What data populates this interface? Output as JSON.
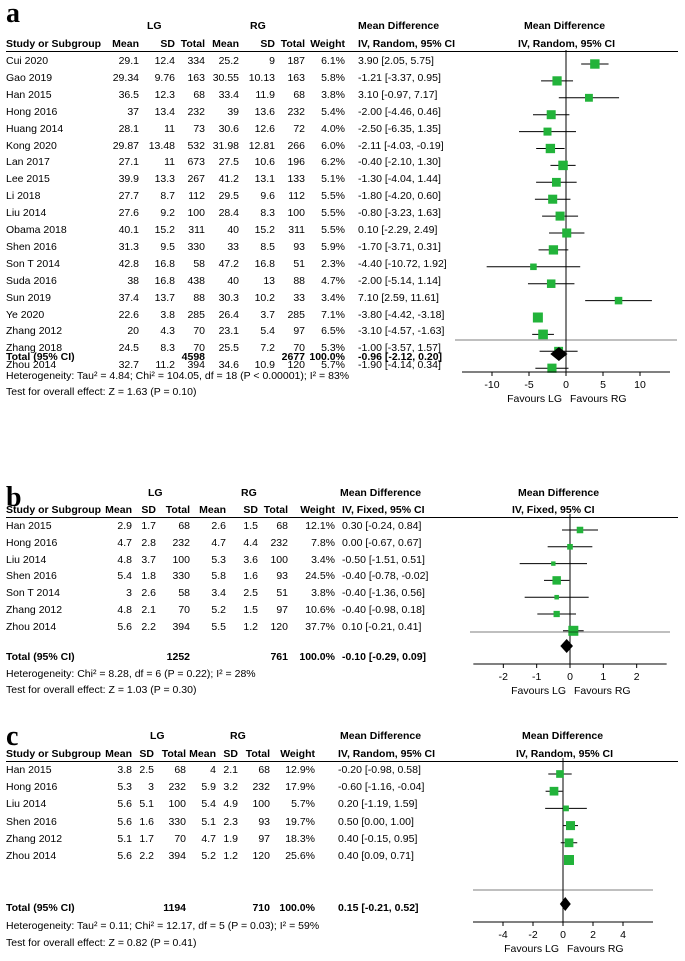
{
  "colors": {
    "marker": "#22b33a",
    "line": "#000000",
    "diamond": "#000000"
  },
  "panels": [
    {
      "id": "a",
      "label": "a",
      "groups": {
        "g1": "LG",
        "g2": "RG"
      },
      "headers": {
        "study": "Study or Subgroup",
        "mean": "Mean",
        "sd": "SD",
        "total": "Total",
        "weight": "Weight",
        "md_title": "Mean Difference",
        "md_method": "IV, Random, 95% CI",
        "plot_title": "Mean Difference",
        "plot_method": "IV, Random, 95% CI"
      },
      "rows": [
        [
          "Cui 2020",
          "29.1",
          "12.4",
          "334",
          "25.2",
          "9",
          "187",
          "6.1%",
          "3.90 [2.05, 5.75]"
        ],
        [
          "Gao 2019",
          "29.34",
          "9.76",
          "163",
          "30.55",
          "10.13",
          "163",
          "5.8%",
          "-1.21 [-3.37, 0.95]"
        ],
        [
          "Han 2015",
          "36.5",
          "12.3",
          "68",
          "33.4",
          "11.9",
          "68",
          "3.8%",
          "3.10 [-0.97, 7.17]"
        ],
        [
          "Hong 2016",
          "37",
          "13.4",
          "232",
          "39",
          "13.6",
          "232",
          "5.4%",
          "-2.00 [-4.46, 0.46]"
        ],
        [
          "Huang 2014",
          "28.1",
          "11",
          "73",
          "30.6",
          "12.6",
          "72",
          "4.0%",
          "-2.50 [-6.35, 1.35]"
        ],
        [
          "Kong 2020",
          "29.87",
          "13.48",
          "532",
          "31.98",
          "12.81",
          "266",
          "6.0%",
          "-2.11 [-4.03, -0.19]"
        ],
        [
          "Lan 2017",
          "27.1",
          "11",
          "673",
          "27.5",
          "10.6",
          "196",
          "6.2%",
          "-0.40 [-2.10, 1.30]"
        ],
        [
          "Lee 2015",
          "39.9",
          "13.3",
          "267",
          "41.2",
          "13.1",
          "133",
          "5.1%",
          "-1.30 [-4.04, 1.44]"
        ],
        [
          "Li 2018",
          "27.7",
          "8.7",
          "112",
          "29.5",
          "9.6",
          "112",
          "5.5%",
          "-1.80 [-4.20, 0.60]"
        ],
        [
          "Liu 2014",
          "27.6",
          "9.2",
          "100",
          "28.4",
          "8.3",
          "100",
          "5.5%",
          "-0.80 [-3.23, 1.63]"
        ],
        [
          "Obama 2018",
          "40.1",
          "15.2",
          "311",
          "40",
          "15.2",
          "311",
          "5.5%",
          "0.10 [-2.29, 2.49]"
        ],
        [
          "Shen 2016",
          "31.3",
          "9.5",
          "330",
          "33",
          "8.5",
          "93",
          "5.9%",
          "-1.70 [-3.71, 0.31]"
        ],
        [
          "Son T 2014",
          "42.8",
          "16.8",
          "58",
          "47.2",
          "16.8",
          "51",
          "2.3%",
          "-4.40 [-10.72, 1.92]"
        ],
        [
          "Suda 2016",
          "38",
          "16.8",
          "438",
          "40",
          "13",
          "88",
          "4.7%",
          "-2.00 [-5.14, 1.14]"
        ],
        [
          "Sun 2019",
          "37.4",
          "13.7",
          "88",
          "30.3",
          "10.2",
          "33",
          "3.4%",
          "7.10 [2.59, 11.61]"
        ],
        [
          "Ye 2020",
          "22.6",
          "3.8",
          "285",
          "26.4",
          "3.7",
          "285",
          "7.1%",
          "-3.80 [-4.42, -3.18]"
        ],
        [
          "Zhang 2012",
          "20",
          "4.3",
          "70",
          "23.1",
          "5.4",
          "97",
          "6.5%",
          "-3.10 [-4.57, -1.63]"
        ],
        [
          "Zhang 2018",
          "24.5",
          "8.3",
          "70",
          "25.5",
          "7.2",
          "70",
          "5.3%",
          "-1.00 [-3.57, 1.57]"
        ],
        [
          "Zhou 2014",
          "32.7",
          "11.2",
          "394",
          "34.6",
          "10.9",
          "120",
          "5.7%",
          "-1.90 [-4.14, 0.34]"
        ]
      ],
      "total": {
        "label": "Total (95% CI)",
        "n1": "4598",
        "n2": "2677",
        "weight": "100.0%",
        "md": "-0.96 [-2.12, 0.20]"
      },
      "heterogeneity": "Heterogeneity: Tau² = 4.84; Chi² = 104.05, df = 18 (P < 0.00001); I² = 83%",
      "overall": "Test for overall effect: Z = 1.63 (P = 0.10)",
      "favours_left": "Favours LG",
      "favours_right": "Favours RG"
    },
    {
      "id": "b",
      "label": "b",
      "groups": {
        "g1": "LG",
        "g2": "RG"
      },
      "headers": {
        "study": "Study or Subgroup",
        "mean": "Mean",
        "sd": "SD",
        "total": "Total",
        "weight": "Weight",
        "md_title": "Mean Difference",
        "md_method": "IV, Fixed, 95% CI",
        "plot_title": "Mean Difference",
        "plot_method": "IV, Fixed, 95% CI"
      },
      "rows": [
        [
          "Han 2015",
          "2.9",
          "1.7",
          "68",
          "2.6",
          "1.5",
          "68",
          "12.1%",
          "0.30 [-0.24, 0.84]"
        ],
        [
          "Hong 2016",
          "4.7",
          "2.8",
          "232",
          "4.7",
          "4.4",
          "232",
          "7.8%",
          "0.00 [-0.67, 0.67]"
        ],
        [
          "Liu 2014",
          "4.8",
          "3.7",
          "100",
          "5.3",
          "3.6",
          "100",
          "3.4%",
          "-0.50 [-1.51, 0.51]"
        ],
        [
          "Shen 2016",
          "5.4",
          "1.8",
          "330",
          "5.8",
          "1.6",
          "93",
          "24.5%",
          "-0.40 [-0.78, -0.02]"
        ],
        [
          "Son T 2014",
          "3",
          "2.6",
          "58",
          "3.4",
          "2.5",
          "51",
          "3.8%",
          "-0.40 [-1.36, 0.56]"
        ],
        [
          "Zhang 2012",
          "4.8",
          "2.1",
          "70",
          "5.2",
          "1.5",
          "97",
          "10.6%",
          "-0.40 [-0.98, 0.18]"
        ],
        [
          "Zhou 2014",
          "5.6",
          "2.2",
          "394",
          "5.5",
          "1.2",
          "120",
          "37.7%",
          "0.10 [-0.21, 0.41]"
        ]
      ],
      "total": {
        "label": "Total (95% CI)",
        "n1": "1252",
        "n2": "761",
        "weight": "100.0%",
        "md": "-0.10 [-0.29, 0.09]"
      },
      "heterogeneity": "Heterogeneity: Chi² = 8.28, df = 6 (P = 0.22); I² = 28%",
      "overall": "Test for overall effect: Z = 1.03 (P = 0.30)",
      "favours_left": "Favours LG",
      "favours_right": "Favours RG"
    },
    {
      "id": "c",
      "label": "c",
      "groups": {
        "g1": "LG",
        "g2": "RG"
      },
      "headers": {
        "study": "Study or Subgroup",
        "mean": "Mean",
        "sd": "SD",
        "total": "Total",
        "weight": "Weight",
        "md_title": "Mean Difference",
        "md_method": "IV, Random, 95% CI",
        "plot_title": "Mean Difference",
        "plot_method": "IV, Random, 95% CI"
      },
      "rows": [
        [
          "Han 2015",
          "3.8",
          "2.5",
          "68",
          "4",
          "2.1",
          "68",
          "12.9%",
          "-0.20 [-0.98, 0.58]"
        ],
        [
          "Hong 2016",
          "5.3",
          "3",
          "232",
          "5.9",
          "3.2",
          "232",
          "17.9%",
          "-0.60 [-1.16, -0.04]"
        ],
        [
          "Liu 2014",
          "5.6",
          "5.1",
          "100",
          "5.4",
          "4.9",
          "100",
          "5.7%",
          "0.20 [-1.19, 1.59]"
        ],
        [
          "Shen 2016",
          "5.6",
          "1.6",
          "330",
          "5.1",
          "2.3",
          "93",
          "19.7%",
          "0.50 [0.00, 1.00]"
        ],
        [
          "Zhang 2012",
          "5.1",
          "1.7",
          "70",
          "4.7",
          "1.9",
          "97",
          "18.3%",
          "0.40 [-0.15, 0.95]"
        ],
        [
          "Zhou 2014",
          "5.6",
          "2.2",
          "394",
          "5.2",
          "1.2",
          "120",
          "25.6%",
          "0.40 [0.09, 0.71]"
        ]
      ],
      "total": {
        "label": "Total (95% CI)",
        "n1": "1194",
        "n2": "710",
        "weight": "100.0%",
        "md": "0.15 [-0.21, 0.52]"
      },
      "heterogeneity": "Heterogeneity: Tau² = 0.11; Chi² = 12.17, df = 5 (P = 0.03); I² = 59%",
      "overall": "Test for overall effect: Z = 0.82 (P = 0.41)",
      "favours_left": "Favours LG",
      "favours_right": "Favours RG"
    }
  ],
  "chart_data": [
    {
      "type": "forest",
      "title": "a",
      "xlim": [
        -15,
        15
      ],
      "ticks": [
        "-10",
        "-5",
        "0",
        "5",
        "10"
      ],
      "tick_values": [
        -10,
        -5,
        0,
        5,
        10
      ],
      "studies": [
        {
          "name": "Cui 2020",
          "md": 3.9,
          "lo": 2.05,
          "hi": 5.75,
          "weight": 6.1
        },
        {
          "name": "Gao 2019",
          "md": -1.21,
          "lo": -3.37,
          "hi": 0.95,
          "weight": 5.8
        },
        {
          "name": "Han 2015",
          "md": 3.1,
          "lo": -0.97,
          "hi": 7.17,
          "weight": 3.8
        },
        {
          "name": "Hong 2016",
          "md": -2.0,
          "lo": -4.46,
          "hi": 0.46,
          "weight": 5.4
        },
        {
          "name": "Huang 2014",
          "md": -2.5,
          "lo": -6.35,
          "hi": 1.35,
          "weight": 4.0
        },
        {
          "name": "Kong 2020",
          "md": -2.11,
          "lo": -4.03,
          "hi": -0.19,
          "weight": 6.0
        },
        {
          "name": "Lan 2017",
          "md": -0.4,
          "lo": -2.1,
          "hi": 1.3,
          "weight": 6.2
        },
        {
          "name": "Lee 2015",
          "md": -1.3,
          "lo": -4.04,
          "hi": 1.44,
          "weight": 5.1
        },
        {
          "name": "Li 2018",
          "md": -1.8,
          "lo": -4.2,
          "hi": 0.6,
          "weight": 5.5
        },
        {
          "name": "Liu 2014",
          "md": -0.8,
          "lo": -3.23,
          "hi": 1.63,
          "weight": 5.5
        },
        {
          "name": "Obama 2018",
          "md": 0.1,
          "lo": -2.29,
          "hi": 2.49,
          "weight": 5.5
        },
        {
          "name": "Shen 2016",
          "md": -1.7,
          "lo": -3.71,
          "hi": 0.31,
          "weight": 5.9
        },
        {
          "name": "Son T 2014",
          "md": -4.4,
          "lo": -10.72,
          "hi": 1.92,
          "weight": 2.3
        },
        {
          "name": "Suda 2016",
          "md": -2.0,
          "lo": -5.14,
          "hi": 1.14,
          "weight": 4.7
        },
        {
          "name": "Sun 2019",
          "md": 7.1,
          "lo": 2.59,
          "hi": 11.61,
          "weight": 3.4
        },
        {
          "name": "Ye 2020",
          "md": -3.8,
          "lo": -4.42,
          "hi": -3.18,
          "weight": 7.1
        },
        {
          "name": "Zhang 2012",
          "md": -3.1,
          "lo": -4.57,
          "hi": -1.63,
          "weight": 6.5
        },
        {
          "name": "Zhang 2018",
          "md": -1.0,
          "lo": -3.57,
          "hi": 1.57,
          "weight": 5.3
        },
        {
          "name": "Zhou 2014",
          "md": -1.9,
          "lo": -4.14,
          "hi": 0.34,
          "weight": 5.7
        }
      ],
      "total": {
        "md": -0.96,
        "lo": -2.12,
        "hi": 0.2
      }
    },
    {
      "type": "forest",
      "title": "b",
      "xlim": [
        -3,
        3
      ],
      "ticks": [
        "-2",
        "-1",
        "0",
        "1",
        "2"
      ],
      "tick_values": [
        -2,
        -1,
        0,
        1,
        2
      ],
      "studies": [
        {
          "name": "Han 2015",
          "md": 0.3,
          "lo": -0.24,
          "hi": 0.84,
          "weight": 12.1
        },
        {
          "name": "Hong 2016",
          "md": 0.0,
          "lo": -0.67,
          "hi": 0.67,
          "weight": 7.8
        },
        {
          "name": "Liu 2014",
          "md": -0.5,
          "lo": -1.51,
          "hi": 0.51,
          "weight": 3.4
        },
        {
          "name": "Shen 2016",
          "md": -0.4,
          "lo": -0.78,
          "hi": -0.02,
          "weight": 24.5
        },
        {
          "name": "Son T 2014",
          "md": -0.4,
          "lo": -1.36,
          "hi": 0.56,
          "weight": 3.8
        },
        {
          "name": "Zhang 2012",
          "md": -0.4,
          "lo": -0.98,
          "hi": 0.18,
          "weight": 10.6
        },
        {
          "name": "Zhou 2014",
          "md": 0.1,
          "lo": -0.21,
          "hi": 0.41,
          "weight": 37.7
        }
      ],
      "total": {
        "md": -0.1,
        "lo": -0.29,
        "hi": 0.09
      }
    },
    {
      "type": "forest",
      "title": "c",
      "xlim": [
        -6,
        6
      ],
      "ticks": [
        "-4",
        "-2",
        "0",
        "2",
        "4"
      ],
      "tick_values": [
        -4,
        -2,
        0,
        2,
        4
      ],
      "studies": [
        {
          "name": "Han 2015",
          "md": -0.2,
          "lo": -0.98,
          "hi": 0.58,
          "weight": 12.9
        },
        {
          "name": "Hong 2016",
          "md": -0.6,
          "lo": -1.16,
          "hi": -0.04,
          "weight": 17.9
        },
        {
          "name": "Liu 2014",
          "md": 0.2,
          "lo": -1.19,
          "hi": 1.59,
          "weight": 5.7
        },
        {
          "name": "Shen 2016",
          "md": 0.5,
          "lo": 0.0,
          "hi": 1.0,
          "weight": 19.7
        },
        {
          "name": "Zhang 2012",
          "md": 0.4,
          "lo": -0.15,
          "hi": 0.95,
          "weight": 18.3
        },
        {
          "name": "Zhou 2014",
          "md": 0.4,
          "lo": 0.09,
          "hi": 0.71,
          "weight": 25.6
        }
      ],
      "total": {
        "md": 0.15,
        "lo": -0.21,
        "hi": 0.52
      }
    }
  ]
}
